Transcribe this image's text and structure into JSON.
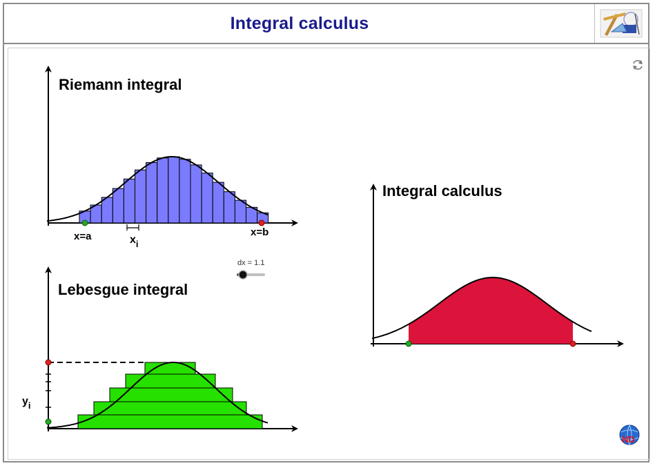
{
  "app": {
    "title": "Integral calculus"
  },
  "riemann": {
    "title": "Riemann integral",
    "label_a": "x=a",
    "label_b": "x=b",
    "label_xi": "x",
    "label_xi_sub": "i"
  },
  "lebesgue": {
    "title": "Lebesgue integral",
    "label_yi": "y",
    "label_yi_sub": "i"
  },
  "integral": {
    "title": "Integral calculus"
  },
  "slider": {
    "label": "dx = 1.1",
    "value": 1.1
  },
  "icons": {
    "refresh": "refresh-icon",
    "header_logo": "tools-logo-icon",
    "corner_logo": "globe-logo-icon"
  },
  "colors": {
    "title": "#1a1a8c",
    "riemann_fill": "#7b7bff",
    "lebesgue_fill": "#26e000",
    "integral_fill": "#dc143c",
    "point_a": "#22aa22",
    "point_b": "#e02020"
  }
}
